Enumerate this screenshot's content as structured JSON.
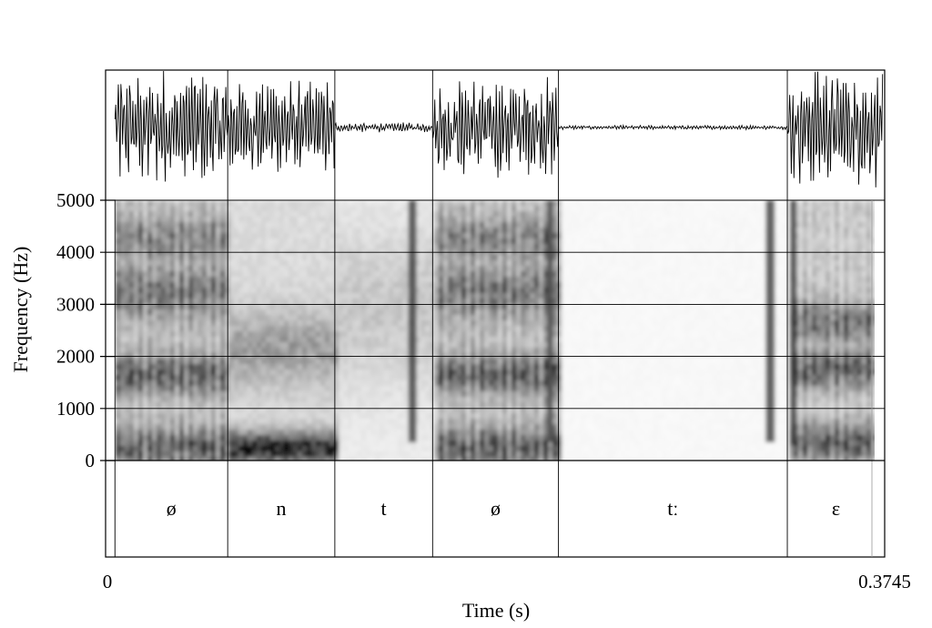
{
  "chart_data": {
    "type": "spectrogram",
    "ylabel": "Frequency (Hz)",
    "xlabel": "Time (s)",
    "x_ticks": [
      "0",
      "0.3745"
    ],
    "xlim": [
      0,
      0.3745
    ],
    "ylim": [
      0,
      5000
    ],
    "y_ticks": [
      0,
      1000,
      2000,
      3000,
      4000,
      5000
    ],
    "y_tick_labels": [
      "0",
      "1000",
      "2000",
      "3000",
      "4000",
      "5000"
    ],
    "segments": [
      {
        "label": "ø",
        "start": 0.0045,
        "end": 0.0587
      },
      {
        "label": "n",
        "start": 0.0587,
        "end": 0.1102
      },
      {
        "label": "t",
        "start": 0.1102,
        "end": 0.1572
      },
      {
        "label": "ø",
        "start": 0.1572,
        "end": 0.2177
      },
      {
        "label": "tː",
        "start": 0.2177,
        "end": 0.3277
      },
      {
        "label": "ɛ",
        "start": 0.3277,
        "end": 0.3745
      }
    ],
    "waveform_amplitude": [
      {
        "start": 0.0045,
        "end": 0.0587,
        "amp": 0.85
      },
      {
        "start": 0.0587,
        "end": 0.1102,
        "amp": 0.7
      },
      {
        "start": 0.1102,
        "end": 0.1572,
        "amp": 0.07
      },
      {
        "start": 0.1572,
        "end": 0.2177,
        "amp": 0.75
      },
      {
        "start": 0.2177,
        "end": 0.3277,
        "amp": 0.03
      },
      {
        "start": 0.3277,
        "end": 0.3745,
        "amp": 0.85
      }
    ],
    "grid": true
  }
}
